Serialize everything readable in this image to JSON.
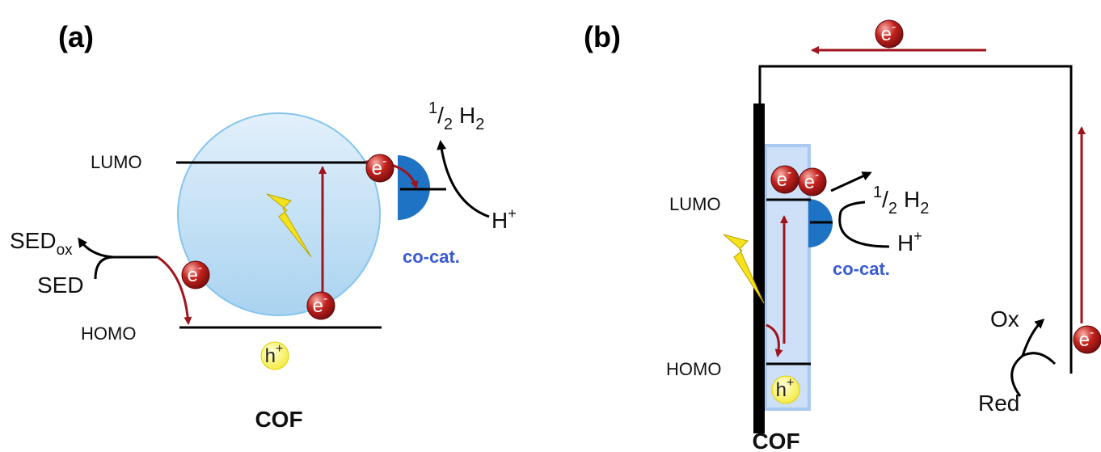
{
  "panel_a": {
    "label": "(a)",
    "lumo": "LUMO",
    "homo": "HOMO",
    "cof": "COF",
    "sed": "SED",
    "sed_ox": {
      "main": "SED",
      "sub": "ox"
    },
    "cocat": "co-cat.",
    "half_h2": {
      "num": "1",
      "slash": "/",
      "den": "2",
      "h": "H",
      "h_sub": "2"
    },
    "proton": {
      "symbol": "H",
      "charge": "+"
    }
  },
  "panel_b": {
    "label": "(b)",
    "lumo": "LUMO",
    "homo": "HOMO",
    "cof": "COF",
    "cocat": "co-cat.",
    "half_h2": {
      "num": "1",
      "slash": "/",
      "den": "2",
      "h": "H",
      "h_sub": "2"
    },
    "proton": {
      "symbol": "H",
      "charge": "+"
    },
    "ox": "Ox",
    "red": "Red"
  },
  "electron": {
    "symbol": "e",
    "charge": "-"
  },
  "hole": {
    "symbol": "h",
    "charge": "+"
  }
}
